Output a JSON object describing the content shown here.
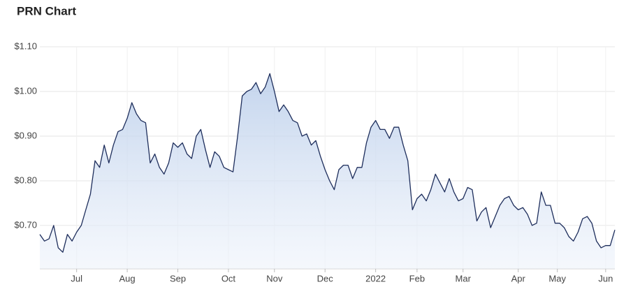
{
  "chart_data": {
    "type": "area",
    "title": "PRN Chart",
    "values": [
      0.68,
      0.665,
      0.67,
      0.7,
      0.65,
      0.64,
      0.68,
      0.665,
      0.685,
      0.7,
      0.735,
      0.77,
      0.845,
      0.83,
      0.88,
      0.84,
      0.88,
      0.91,
      0.915,
      0.94,
      0.975,
      0.95,
      0.935,
      0.93,
      0.84,
      0.86,
      0.83,
      0.815,
      0.84,
      0.885,
      0.875,
      0.885,
      0.86,
      0.85,
      0.9,
      0.915,
      0.87,
      0.83,
      0.865,
      0.855,
      0.83,
      0.825,
      0.82,
      0.9,
      0.99,
      1.0,
      1.005,
      1.02,
      0.995,
      1.01,
      1.04,
      1.0,
      0.955,
      0.97,
      0.955,
      0.935,
      0.93,
      0.9,
      0.905,
      0.88,
      0.89,
      0.855,
      0.825,
      0.8,
      0.78,
      0.825,
      0.835,
      0.835,
      0.805,
      0.83,
      0.83,
      0.885,
      0.92,
      0.935,
      0.915,
      0.915,
      0.895,
      0.92,
      0.92,
      0.88,
      0.845,
      0.735,
      0.76,
      0.77,
      0.755,
      0.78,
      0.815,
      0.795,
      0.775,
      0.805,
      0.775,
      0.755,
      0.76,
      0.785,
      0.78,
      0.71,
      0.73,
      0.74,
      0.695,
      0.72,
      0.745,
      0.76,
      0.765,
      0.745,
      0.735,
      0.74,
      0.725,
      0.7,
      0.705,
      0.775,
      0.745,
      0.745,
      0.705,
      0.705,
      0.695,
      0.675,
      0.665,
      0.685,
      0.715,
      0.72,
      0.705,
      0.665,
      0.65,
      0.655,
      0.655,
      0.69
    ],
    "color": "#1e2e5c",
    "xlim": [
      0,
      125
    ],
    "xticks": [
      {
        "value": 8,
        "label": "Jul"
      },
      {
        "value": 19,
        "label": "Aug"
      },
      {
        "value": 30,
        "label": "Sep"
      },
      {
        "value": 41,
        "label": "Oct"
      },
      {
        "value": 51,
        "label": "Nov"
      },
      {
        "value": 62,
        "label": "Dec"
      },
      {
        "value": 73,
        "label": "2022"
      },
      {
        "value": 82,
        "label": "Feb"
      },
      {
        "value": 92,
        "label": "Mar"
      },
      {
        "value": 104,
        "label": "Apr"
      },
      {
        "value": 112.5,
        "label": "May"
      },
      {
        "value": 123,
        "label": "Jun"
      }
    ],
    "ylim": [
      0.603,
      1.1
    ],
    "yticks": [
      {
        "value": 0.7,
        "label": "$0.70"
      },
      {
        "value": 0.8,
        "label": "$0.80"
      },
      {
        "value": 0.9,
        "label": "$0.90"
      },
      {
        "value": 1.0,
        "label": "$1.00"
      },
      {
        "value": 1.1,
        "label": "$1.10"
      }
    ],
    "grid": true
  }
}
